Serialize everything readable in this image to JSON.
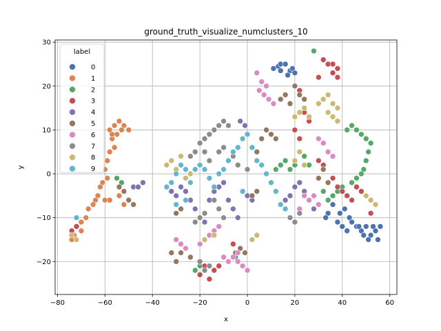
{
  "chart_data": {
    "type": "scatter",
    "title": "ground_truth_visualize_numclusters_10",
    "xlabel": "x",
    "ylabel": "y",
    "xlim": [
      -81,
      63
    ],
    "ylim": [
      -27.5,
      30.5
    ],
    "xticks": [
      -80,
      -60,
      -40,
      -20,
      0,
      20,
      40,
      60
    ],
    "yticks": [
      -20,
      -10,
      0,
      10,
      20,
      30
    ],
    "grid": true,
    "legend": {
      "title": "label",
      "position": "top-left"
    },
    "series": [
      {
        "name": "0",
        "color": "#4c72b0",
        "points": [
          [
            11,
            24
          ],
          [
            13,
            24.5
          ],
          [
            14,
            25
          ],
          [
            16,
            25
          ],
          [
            18,
            23.5
          ],
          [
            19,
            24
          ],
          [
            20,
            23
          ],
          [
            14,
            23.5
          ],
          [
            17,
            22.5
          ],
          [
            39,
            -9
          ],
          [
            41,
            -8
          ],
          [
            43,
            -10
          ],
          [
            44,
            -11
          ],
          [
            46,
            -12
          ],
          [
            48,
            -13
          ],
          [
            50,
            -12
          ],
          [
            52,
            -14
          ],
          [
            53,
            -12
          ],
          [
            54,
            -13
          ],
          [
            55,
            -15
          ],
          [
            56,
            -12
          ],
          [
            36,
            -7
          ],
          [
            34,
            -9
          ],
          [
            33,
            -10
          ],
          [
            38,
            -11
          ],
          [
            40,
            -12
          ],
          [
            42,
            -13
          ],
          [
            49,
            -14
          ],
          [
            51,
            -15
          ],
          [
            47,
            -12
          ]
        ]
      },
      {
        "name": "1",
        "color": "#dd8452",
        "points": [
          [
            -58,
            10
          ],
          [
            -56,
            11
          ],
          [
            -54,
            12
          ],
          [
            -52,
            11
          ],
          [
            -50,
            10
          ],
          [
            -57,
            8
          ],
          [
            -56,
            6
          ],
          [
            -58,
            5
          ],
          [
            -59,
            3
          ],
          [
            -60,
            1
          ],
          [
            -59,
            -1
          ],
          [
            -61,
            -2
          ],
          [
            -62,
            -3
          ],
          [
            -63,
            -5
          ],
          [
            -64,
            -6
          ],
          [
            -65,
            -7
          ],
          [
            -67,
            -8
          ],
          [
            -68,
            -10
          ],
          [
            -70,
            -11
          ],
          [
            -72,
            -12
          ],
          [
            -73,
            -14
          ],
          [
            -74,
            -15
          ],
          [
            -70,
            -13
          ],
          [
            -60,
            -6
          ],
          [
            -58,
            -6
          ],
          [
            -54,
            -5
          ],
          [
            -52,
            -7
          ],
          [
            -55,
            9
          ],
          [
            -53,
            10
          ],
          [
            -57,
            9
          ]
        ]
      },
      {
        "name": "2",
        "color": "#55a868",
        "points": [
          [
            28,
            28
          ],
          [
            42,
            10
          ],
          [
            44,
            11
          ],
          [
            46,
            10
          ],
          [
            48,
            9
          ],
          [
            50,
            8
          ],
          [
            52,
            7
          ],
          [
            51,
            5
          ],
          [
            50,
            3
          ],
          [
            49,
            1
          ],
          [
            48,
            0
          ],
          [
            46,
            -1
          ],
          [
            44,
            -2
          ],
          [
            40,
            -3
          ],
          [
            38,
            -4
          ],
          [
            36,
            -5
          ],
          [
            34,
            -6
          ],
          [
            32,
            -4
          ],
          [
            12,
            1
          ],
          [
            14,
            2
          ],
          [
            16,
            3
          ],
          [
            18,
            1
          ],
          [
            20,
            2
          ],
          [
            24,
            4
          ],
          [
            26,
            2
          ],
          [
            -55,
            -1
          ],
          [
            -53,
            -2
          ],
          [
            -20,
            -21
          ],
          [
            -22,
            -22
          ],
          [
            -5,
            -19
          ]
        ]
      },
      {
        "name": "3",
        "color": "#c44e52",
        "points": [
          [
            32,
            26
          ],
          [
            34,
            25
          ],
          [
            36,
            25
          ],
          [
            38,
            24
          ],
          [
            36,
            23
          ],
          [
            38,
            22
          ],
          [
            30,
            22
          ],
          [
            22,
            19
          ],
          [
            24,
            14
          ],
          [
            26,
            12
          ],
          [
            30,
            3
          ],
          [
            32,
            2
          ],
          [
            36,
            -1
          ],
          [
            38,
            -3
          ],
          [
            40,
            -4
          ],
          [
            42,
            -5
          ],
          [
            44,
            -6
          ],
          [
            46,
            -3
          ],
          [
            48,
            -4
          ],
          [
            -18,
            -21
          ],
          [
            -20,
            -23
          ],
          [
            -16,
            -24
          ],
          [
            -14,
            -22
          ],
          [
            -12,
            -21
          ],
          [
            -72,
            -12
          ],
          [
            -74,
            -13
          ],
          [
            -6,
            -16
          ],
          [
            52,
            -9
          ],
          [
            20,
            10
          ],
          [
            22,
            8
          ]
        ]
      },
      {
        "name": "4",
        "color": "#8172b2",
        "points": [
          [
            -30,
            -5
          ],
          [
            -28,
            -3
          ],
          [
            -26,
            -4
          ],
          [
            -24,
            -6
          ],
          [
            -22,
            -8
          ],
          [
            -20,
            -10
          ],
          [
            -18,
            -11
          ],
          [
            -16,
            -6
          ],
          [
            -14,
            -4
          ],
          [
            -12,
            -3
          ],
          [
            -10,
            -2
          ],
          [
            -8,
            -6
          ],
          [
            -6,
            -8
          ],
          [
            -4,
            -10
          ],
          [
            -2,
            -4
          ],
          [
            0,
            -5
          ],
          [
            2,
            -6
          ],
          [
            -3,
            12
          ],
          [
            -1,
            11
          ],
          [
            16,
            -6
          ],
          [
            18,
            -5
          ],
          [
            20,
            -3
          ],
          [
            22,
            -2
          ],
          [
            24,
            -4
          ],
          [
            26,
            -6
          ],
          [
            28,
            -8
          ],
          [
            -48,
            -3
          ],
          [
            -46,
            -3
          ],
          [
            -44,
            -2
          ],
          [
            -32,
            -4
          ]
        ]
      },
      {
        "name": "5",
        "color": "#937860",
        "points": [
          [
            -28,
            -18
          ],
          [
            -26,
            -17
          ],
          [
            -24,
            -19
          ],
          [
            -30,
            -20
          ],
          [
            -32,
            -18
          ],
          [
            16,
            18
          ],
          [
            18,
            16
          ],
          [
            14,
            17
          ],
          [
            20,
            20
          ],
          [
            22,
            18
          ],
          [
            24,
            17
          ],
          [
            8,
            10
          ],
          [
            10,
            9
          ],
          [
            12,
            8
          ],
          [
            6,
            8
          ],
          [
            4,
            5
          ],
          [
            -30,
            -9
          ],
          [
            -28,
            -8
          ],
          [
            -54,
            -3
          ],
          [
            -52,
            -4
          ],
          [
            -50,
            -6
          ],
          [
            -48,
            -7
          ],
          [
            -5,
            -18
          ],
          [
            -3,
            -17
          ],
          [
            -1,
            -18
          ],
          [
            2,
            -5
          ],
          [
            4,
            -4
          ],
          [
            30,
            -1
          ],
          [
            32,
            1
          ],
          [
            34,
            -2
          ]
        ]
      },
      {
        "name": "6",
        "color": "#da8bc3",
        "points": [
          [
            4,
            23
          ],
          [
            6,
            21
          ],
          [
            8,
            20
          ],
          [
            5,
            19
          ],
          [
            7,
            18
          ],
          [
            9,
            17
          ],
          [
            11,
            16
          ],
          [
            -6,
            -19
          ],
          [
            -4,
            -20
          ],
          [
            -2,
            -21
          ],
          [
            0,
            -22
          ],
          [
            -8,
            -20
          ],
          [
            -30,
            -15
          ],
          [
            -28,
            -16
          ],
          [
            -26,
            -17
          ],
          [
            30,
            8
          ],
          [
            32,
            7
          ],
          [
            34,
            5
          ],
          [
            36,
            4
          ],
          [
            28,
            -5
          ],
          [
            30,
            -7
          ],
          [
            26,
            -6
          ],
          [
            24,
            -5
          ],
          [
            22,
            -8
          ],
          [
            -12,
            -12
          ],
          [
            -14,
            -13
          ],
          [
            -16,
            -14
          ],
          [
            -20,
            -16
          ],
          [
            -10,
            -19
          ],
          [
            -4,
            -18
          ]
        ]
      },
      {
        "name": "7",
        "color": "#8c8c8c",
        "points": [
          [
            -20,
            7
          ],
          [
            -18,
            8
          ],
          [
            -16,
            9
          ],
          [
            -14,
            10
          ],
          [
            -12,
            11
          ],
          [
            -10,
            12
          ],
          [
            -8,
            11
          ],
          [
            -22,
            5
          ],
          [
            -24,
            4
          ],
          [
            -18,
            5
          ],
          [
            -16,
            3
          ],
          [
            -12,
            5
          ],
          [
            -10,
            6
          ],
          [
            -14,
            -6
          ],
          [
            -12,
            -8
          ],
          [
            -10,
            -10
          ],
          [
            -18,
            -9
          ],
          [
            -20,
            -10
          ],
          [
            -22,
            -11
          ],
          [
            14,
            -7
          ],
          [
            16,
            -8
          ],
          [
            18,
            -10
          ],
          [
            20,
            -11
          ],
          [
            22,
            -9
          ],
          [
            -20,
            -20
          ],
          [
            -18,
            -22
          ],
          [
            -16,
            -21
          ],
          [
            -6,
            4
          ],
          [
            -4,
            2
          ],
          [
            0,
            1
          ]
        ]
      },
      {
        "name": "8",
        "color": "#ccb974",
        "points": [
          [
            32,
            17
          ],
          [
            34,
            18
          ],
          [
            36,
            16
          ],
          [
            38,
            15
          ],
          [
            30,
            16
          ],
          [
            22,
            14
          ],
          [
            24,
            15
          ],
          [
            26,
            13
          ],
          [
            20,
            13
          ],
          [
            22,
            5
          ],
          [
            20,
            3
          ],
          [
            24,
            2
          ],
          [
            50,
            -5
          ],
          [
            52,
            -6
          ],
          [
            54,
            -7
          ],
          [
            -34,
            2
          ],
          [
            -32,
            3
          ],
          [
            -28,
            4
          ],
          [
            -30,
            1
          ],
          [
            -24,
            0
          ],
          [
            -26,
            -1
          ],
          [
            -74,
            -14
          ],
          [
            -72,
            -15
          ],
          [
            -18,
            -15
          ],
          [
            -14,
            -14
          ],
          [
            2,
            -15
          ],
          [
            4,
            -14
          ],
          [
            34,
            14
          ],
          [
            36,
            13
          ],
          [
            38,
            12
          ]
        ]
      },
      {
        "name": "9",
        "color": "#64b5cd",
        "points": [
          [
            -34,
            -3
          ],
          [
            -32,
            -2
          ],
          [
            -30,
            0
          ],
          [
            -28,
            2
          ],
          [
            -26,
            1
          ],
          [
            -24,
            -2
          ],
          [
            -22,
            1
          ],
          [
            -20,
            2
          ],
          [
            -18,
            1
          ],
          [
            -16,
            -1
          ],
          [
            -14,
            -3
          ],
          [
            -12,
            0
          ],
          [
            -10,
            1
          ],
          [
            -8,
            3
          ],
          [
            -6,
            5
          ],
          [
            -4,
            6
          ],
          [
            -2,
            8
          ],
          [
            0,
            9
          ],
          [
            2,
            6
          ],
          [
            4,
            3
          ],
          [
            6,
            2
          ],
          [
            8,
            0
          ],
          [
            10,
            -2
          ],
          [
            12,
            -4
          ],
          [
            14,
            -7
          ],
          [
            16,
            -8
          ],
          [
            -30,
            -7
          ],
          [
            -26,
            -6
          ],
          [
            -72,
            -10
          ],
          [
            -2,
            -4
          ]
        ]
      }
    ]
  }
}
